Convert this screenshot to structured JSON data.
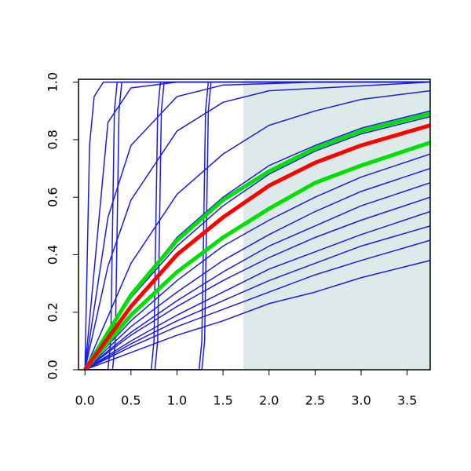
{
  "chart_data": {
    "type": "line",
    "xlim": [
      -0.07,
      3.75
    ],
    "ylim": [
      0,
      1.01
    ],
    "xticks": [
      {
        "value": 0,
        "label": "0.0"
      },
      {
        "value": 0.5,
        "label": "0.5"
      },
      {
        "value": 1,
        "label": "1.0"
      },
      {
        "value": 1.5,
        "label": "1.5"
      },
      {
        "value": 2,
        "label": "2.0"
      },
      {
        "value": 2.5,
        "label": "2.5"
      },
      {
        "value": 3,
        "label": "3.0"
      },
      {
        "value": 3.5,
        "label": "3.5"
      }
    ],
    "yticks": [
      {
        "value": 0,
        "label": "0.0"
      },
      {
        "value": 0.2,
        "label": "0.2"
      },
      {
        "value": 0.4,
        "label": "0.4"
      },
      {
        "value": 0.6,
        "label": "0.6"
      },
      {
        "value": 0.8,
        "label": "0.8"
      },
      {
        "value": 1,
        "label": "1.0"
      }
    ],
    "shaded_region": {
      "x": [
        1.72,
        3.75
      ],
      "color": "#deeaea"
    },
    "series": [
      {
        "color": "#1c1ce0",
        "line_width": 1.5,
        "x": [
          0,
          0.5,
          1,
          1.5,
          2,
          2.5,
          3,
          3.75
        ],
        "values": [
          0,
          0.26,
          0.46,
          0.6,
          0.71,
          0.78,
          0.84,
          0.9
        ]
      },
      {
        "color": "#1c1ce0",
        "line_width": 1.5,
        "x": [
          0,
          0.5,
          1,
          1.5,
          2,
          2.5,
          3,
          3.75
        ],
        "values": [
          0,
          0.25,
          0.43,
          0.57,
          0.68,
          0.76,
          0.82,
          0.88
        ]
      },
      {
        "color": "#1c1ce0",
        "line_width": 1.5,
        "x": [
          0,
          0.5,
          1,
          1.5,
          2,
          2.5,
          3,
          3.75
        ],
        "values": [
          0,
          0.17,
          0.31,
          0.43,
          0.52,
          0.6,
          0.67,
          0.75
        ]
      },
      {
        "color": "#1c1ce0",
        "line_width": 1.5,
        "x": [
          0,
          0.5,
          1,
          1.5,
          2,
          2.5,
          3,
          3.75
        ],
        "values": [
          0,
          0.15,
          0.27,
          0.38,
          0.47,
          0.55,
          0.62,
          0.7
        ]
      },
      {
        "color": "#1c1ce0",
        "line_width": 1.5,
        "x": [
          0,
          0.5,
          1,
          1.5,
          2,
          2.5,
          3,
          3.75
        ],
        "values": [
          0,
          0.13,
          0.24,
          0.34,
          0.43,
          0.5,
          0.57,
          0.65
        ]
      },
      {
        "color": "#1c1ce0",
        "line_width": 1.5,
        "x": [
          0,
          0.5,
          1,
          1.5,
          2,
          2.5,
          3,
          3.75
        ],
        "values": [
          0,
          0.12,
          0.22,
          0.31,
          0.39,
          0.46,
          0.52,
          0.6
        ]
      },
      {
        "color": "#1c1ce0",
        "line_width": 1.5,
        "x": [
          0,
          0.5,
          1,
          1.5,
          2,
          2.5,
          3,
          3.75
        ],
        "values": [
          0,
          0.1,
          0.19,
          0.27,
          0.35,
          0.41,
          0.47,
          0.55
        ]
      },
      {
        "color": "#1c1ce0",
        "line_width": 1.5,
        "x": [
          0,
          0.5,
          1,
          1.5,
          2,
          2.5,
          3,
          3.75
        ],
        "values": [
          0,
          0.09,
          0.17,
          0.24,
          0.31,
          0.37,
          0.43,
          0.5
        ]
      },
      {
        "color": "#1c1ce0",
        "line_width": 1.5,
        "x": [
          0,
          0.5,
          1,
          1.5,
          2,
          2.5,
          3,
          3.75
        ],
        "values": [
          0,
          0.08,
          0.15,
          0.21,
          0.27,
          0.33,
          0.38,
          0.45
        ]
      },
      {
        "color": "#1c1ce0",
        "line_width": 1.5,
        "x": [
          0,
          0.5,
          1,
          1.5,
          2,
          2.5,
          3,
          3.75
        ],
        "values": [
          0,
          0.06,
          0.12,
          0.17,
          0.23,
          0.27,
          0.32,
          0.38
        ]
      },
      {
        "color": "#1c1ce0",
        "line_width": 1.5,
        "x": [
          0,
          0.5,
          1,
          1.5,
          2,
          2.5,
          3,
          3.75
        ],
        "values": [
          0,
          0.37,
          0.61,
          0.75,
          0.85,
          0.9,
          0.94,
          0.97
        ]
      },
      {
        "color": "#1c1ce0",
        "line_width": 1.5,
        "x": [
          0,
          0.25,
          0.5,
          1,
          1.5,
          2,
          3.75
        ],
        "values": [
          0,
          0.36,
          0.59,
          0.83,
          0.93,
          0.97,
          1.0
        ]
      },
      {
        "color": "#1c1ce0",
        "line_width": 1.5,
        "x": [
          0,
          0.25,
          0.5,
          1,
          1.5,
          2.5,
          3.75
        ],
        "values": [
          0,
          0.53,
          0.78,
          0.95,
          0.99,
          1,
          1
        ]
      },
      {
        "color": "#1c1ce0",
        "line_width": 1.5,
        "x": [
          0,
          0.25,
          0.5,
          1,
          3.75
        ],
        "values": [
          0,
          0.86,
          0.98,
          1,
          1
        ]
      },
      {
        "color": "#1c1ce0",
        "line_width": 1.5,
        "x": [
          0,
          0.05,
          0.1,
          0.2,
          3.75
        ],
        "values": [
          0,
          0.78,
          0.95,
          1,
          1
        ]
      },
      {
        "color": "#1c1ce0",
        "line_width": 1.5,
        "x": [
          0,
          0.25,
          0.28,
          0.3,
          0.32,
          0.35,
          3.75
        ],
        "values": [
          0,
          0,
          0.1,
          0.5,
          0.9,
          1,
          1
        ]
      },
      {
        "color": "#1c1ce0",
        "line_width": 1.5,
        "x": [
          0,
          0.3,
          0.33,
          0.35,
          0.37,
          0.4,
          3.75
        ],
        "values": [
          0,
          0,
          0.1,
          0.5,
          0.9,
          1,
          1
        ]
      },
      {
        "color": "#1c1ce0",
        "line_width": 1.5,
        "x": [
          0,
          0.72,
          0.75,
          0.77,
          0.79,
          0.82,
          3.75
        ],
        "values": [
          0,
          0,
          0.1,
          0.5,
          0.9,
          1,
          1
        ]
      },
      {
        "color": "#1c1ce0",
        "line_width": 1.5,
        "x": [
          0,
          0.76,
          0.79,
          0.81,
          0.83,
          0.86,
          3.75
        ],
        "values": [
          0,
          0,
          0.1,
          0.5,
          0.9,
          1,
          1
        ]
      },
      {
        "color": "#1c1ce0",
        "line_width": 1.5,
        "x": [
          0,
          1.24,
          1.27,
          1.29,
          1.31,
          1.34,
          3.75
        ],
        "values": [
          0,
          0,
          0.1,
          0.5,
          0.9,
          1,
          1
        ]
      },
      {
        "color": "#1c1ce0",
        "line_width": 1.5,
        "x": [
          0,
          1.27,
          1.3,
          1.32,
          1.34,
          1.37,
          3.75
        ],
        "values": [
          0,
          0,
          0.1,
          0.5,
          0.9,
          1,
          1
        ]
      },
      {
        "color": "#00e000",
        "line_width": 5,
        "x": [
          0,
          0.5,
          1,
          1.5,
          2,
          2.5,
          3,
          3.75
        ],
        "values": [
          0,
          0.26,
          0.45,
          0.59,
          0.69,
          0.77,
          0.83,
          0.89
        ]
      },
      {
        "color": "#00e000",
        "line_width": 5,
        "x": [
          0,
          0.5,
          1,
          1.5,
          2,
          2.5,
          3,
          3.75
        ],
        "values": [
          0,
          0.19,
          0.34,
          0.46,
          0.56,
          0.65,
          0.71,
          0.79
        ]
      },
      {
        "color": "#ff0000",
        "line_width": 5,
        "x": [
          0,
          0.5,
          1,
          1.5,
          2,
          2.5,
          3,
          3.75
        ],
        "values": [
          0,
          0.22,
          0.4,
          0.53,
          0.64,
          0.72,
          0.78,
          0.85
        ]
      }
    ]
  }
}
